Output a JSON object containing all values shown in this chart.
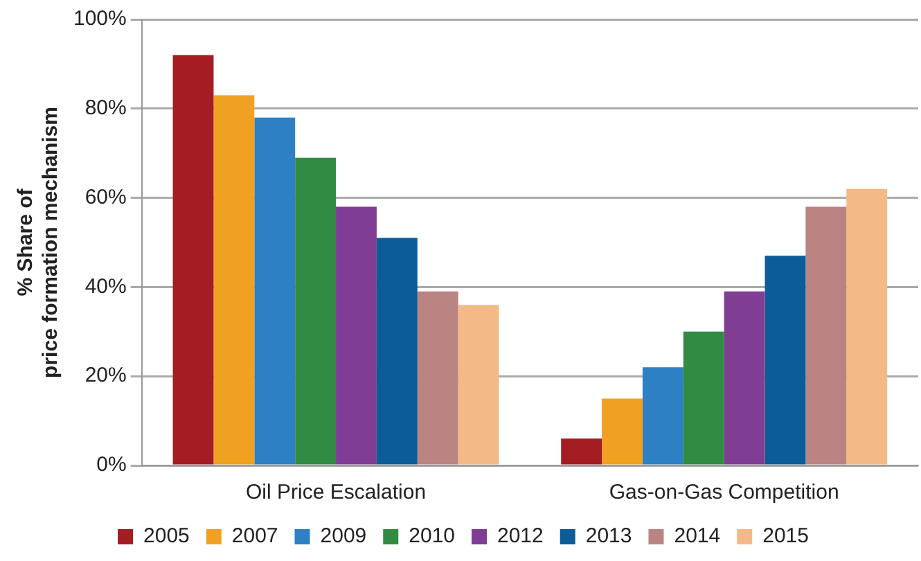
{
  "chart_data": {
    "type": "bar",
    "ylabel": "% Share of price formation mechanism",
    "categories": [
      "Oil Price Escalation",
      "Gas-on-Gas Competition"
    ],
    "series": [
      {
        "name": "2005",
        "color": "#a31d22",
        "values": [
          92,
          6
        ]
      },
      {
        "name": "2007",
        "color": "#f0a122",
        "values": [
          83,
          15
        ]
      },
      {
        "name": "2009",
        "color": "#2d80c4",
        "values": [
          78,
          22
        ]
      },
      {
        "name": "2010",
        "color": "#318b43",
        "values": [
          69,
          30
        ]
      },
      {
        "name": "2012",
        "color": "#7f3d94",
        "values": [
          58,
          39
        ]
      },
      {
        "name": "2013",
        "color": "#0b5c98",
        "values": [
          51,
          47
        ]
      },
      {
        "name": "2014",
        "color": "#ba8482",
        "values": [
          39,
          58
        ]
      },
      {
        "name": "2015",
        "color": "#f3ba87",
        "values": [
          36,
          62
        ]
      }
    ],
    "ylim": [
      0,
      100
    ],
    "yticks": [
      {
        "value": 0,
        "label": "0%"
      },
      {
        "value": 20,
        "label": "20%"
      },
      {
        "value": 40,
        "label": "40%"
      },
      {
        "value": 60,
        "label": "60%"
      },
      {
        "value": 80,
        "label": "80%"
      },
      {
        "value": 100,
        "label": "100%"
      }
    ],
    "grid": "y",
    "legend": "bottom"
  }
}
